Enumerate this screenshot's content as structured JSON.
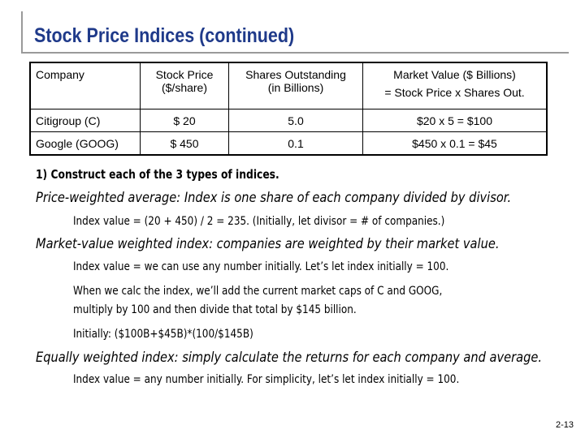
{
  "title": "Stock Price Indices (continued)",
  "table": {
    "headers": [
      "Company",
      "Stock Price\n($/share)",
      "Shares Outstanding\n(in Billions)",
      "Market Value ($ Billions)\n= Stock Price x Shares Out."
    ],
    "rows": [
      [
        "Citigroup (C)",
        "$ 20",
        "5.0",
        "$20 x 5 = $100"
      ],
      [
        "Google (GOOG)",
        "$ 450",
        "0.1",
        "$450 x 0.1 =  $45"
      ]
    ]
  },
  "lines": [
    "1) Construct each of the 3 types of indices.",
    "Price-weighted average:  Index is one share of each company divided by divisor.",
    "Index value =  (20 + 450) / 2 =  235.  (Initially, let divisor = # of companies.)",
    "Market-value weighted index:  companies are weighted by their market value.",
    "Index value =  we can use any number initially. Let’s let index initially = 100.",
    "When we calc the index, we’ll add the current market caps of C and GOOG,",
    "multiply by 100 and then divide that total by $145 billion.",
    "Initially: ($100B+$45B)*(100/$145B)",
    "Equally weighted index:  simply calculate the returns for each company and average.",
    "Index value =  any number initially. For simplicity, let’s let index initially = 100."
  ],
  "page_number": "2-13"
}
